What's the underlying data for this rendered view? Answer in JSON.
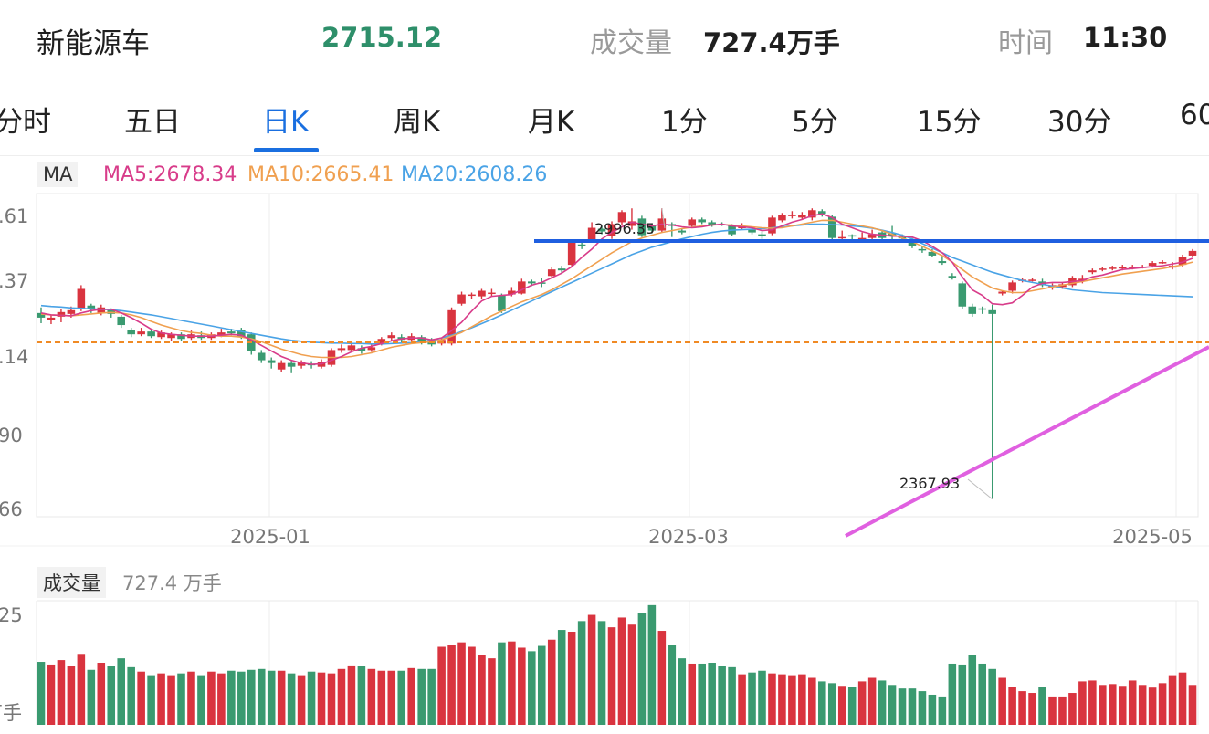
{
  "header": {
    "name": "新能源车",
    "price": "2715.12",
    "volume_label": "成交量",
    "volume_value": "727.4万手",
    "time_label": "时间",
    "time_value": "11:30"
  },
  "tabs": [
    "分时",
    "五日",
    "日K",
    "周K",
    "月K",
    "1分",
    "5分",
    "15分",
    "30分",
    "60"
  ],
  "active_tab": "日K",
  "ma_bar": {
    "chip": "MA",
    "ma5": "MA5:2678.34",
    "ma10": "MA10:2665.41",
    "ma20": "MA20:2608.26"
  },
  "volume_bar": {
    "chip": "成交量",
    "value": "727.4 万手"
  },
  "colors": {
    "up": "#d9343f",
    "down": "#3a9a70",
    "ma5": "#d83c8a",
    "ma10": "#f0a050",
    "ma20": "#4aa3e6",
    "accent": "#1a6fe0",
    "resistance": "#1f5fe0",
    "trendline": "#e060e0",
    "ref_line": "#f08a24"
  },
  "chart_data": {
    "type": "candlestick",
    "y_ticks": [
      ".61",
      ".37",
      ".14",
      "90",
      "66"
    ],
    "x_ticks": [
      "2025-01",
      "2025-03",
      "2025-05"
    ],
    "annotations": {
      "high": "2996.35",
      "low": "2367.93"
    },
    "volume_tick_top": "25",
    "volume_tick_bottom": "万手",
    "candles": [
      [
        2770,
        2760,
        2782,
        2748
      ],
      [
        2755,
        2760,
        2766,
        2746
      ],
      [
        2762,
        2772,
        2778,
        2750
      ],
      [
        2768,
        2776,
        2784,
        2760
      ],
      [
        2778,
        2822,
        2830,
        2774
      ],
      [
        2786,
        2778,
        2790,
        2770
      ],
      [
        2770,
        2782,
        2788,
        2765
      ],
      [
        2776,
        2768,
        2780,
        2760
      ],
      [
        2762,
        2744,
        2766,
        2738
      ],
      [
        2734,
        2724,
        2738,
        2718
      ],
      [
        2724,
        2730,
        2738,
        2720
      ],
      [
        2730,
        2720,
        2734,
        2716
      ],
      [
        2718,
        2728,
        2732,
        2714
      ],
      [
        2716,
        2724,
        2728,
        2710
      ],
      [
        2724,
        2714,
        2728,
        2710
      ],
      [
        2716,
        2724,
        2732,
        2712
      ],
      [
        2722,
        2716,
        2730,
        2712
      ],
      [
        2716,
        2724,
        2728,
        2712
      ],
      [
        2722,
        2728,
        2736,
        2718
      ],
      [
        2730,
        2726,
        2736,
        2722
      ],
      [
        2734,
        2718,
        2738,
        2714
      ],
      [
        2724,
        2688,
        2728,
        2680
      ],
      [
        2684,
        2668,
        2690,
        2662
      ],
      [
        2668,
        2662,
        2674,
        2650
      ],
      [
        2648,
        2662,
        2668,
        2642
      ],
      [
        2662,
        2654,
        2668,
        2640
      ],
      [
        2656,
        2664,
        2668,
        2650
      ],
      [
        2660,
        2658,
        2666,
        2650
      ],
      [
        2654,
        2664,
        2670,
        2650
      ],
      [
        2658,
        2690,
        2694,
        2654
      ],
      [
        2690,
        2694,
        2702,
        2684
      ],
      [
        2690,
        2700,
        2704,
        2686
      ],
      [
        2694,
        2688,
        2700,
        2682
      ],
      [
        2690,
        2696,
        2702,
        2686
      ],
      [
        2704,
        2714,
        2718,
        2700
      ],
      [
        2716,
        2722,
        2728,
        2710
      ],
      [
        2718,
        2712,
        2724,
        2706
      ],
      [
        2712,
        2720,
        2726,
        2706
      ],
      [
        2718,
        2708,
        2722,
        2702
      ],
      [
        2712,
        2702,
        2716,
        2698
      ],
      [
        2704,
        2712,
        2716,
        2700
      ],
      [
        2704,
        2776,
        2782,
        2700
      ],
      [
        2790,
        2810,
        2816,
        2786
      ],
      [
        2808,
        2810,
        2814,
        2800
      ],
      [
        2806,
        2818,
        2822,
        2800
      ],
      [
        2812,
        2814,
        2822,
        2806
      ],
      [
        2808,
        2774,
        2812,
        2770
      ],
      [
        2810,
        2818,
        2826,
        2806
      ],
      [
        2812,
        2838,
        2844,
        2810
      ],
      [
        2838,
        2834,
        2842,
        2828
      ],
      [
        2836,
        2834,
        2846,
        2826
      ],
      [
        2850,
        2864,
        2870,
        2846
      ],
      [
        2866,
        2862,
        2872,
        2856
      ],
      [
        2874,
        2922,
        2928,
        2870
      ],
      [
        2918,
        2914,
        2926,
        2908
      ],
      [
        2928,
        2954,
        2966,
        2922
      ],
      [
        2952,
        2946,
        2958,
        2940
      ],
      [
        2936,
        2962,
        2968,
        2930
      ],
      [
        2966,
        2988,
        2992,
        2960
      ],
      [
        2958,
        2968,
        2996,
        2950
      ],
      [
        2974,
        2938,
        2980,
        2934
      ],
      [
        2960,
        2948,
        2964,
        2942
      ],
      [
        2948,
        2974,
        2996,
        2944
      ],
      [
        2962,
        2958,
        2966,
        2934
      ],
      [
        2948,
        2944,
        2952,
        2940
      ],
      [
        2958,
        2972,
        2976,
        2954
      ],
      [
        2972,
        2966,
        2976,
        2962
      ],
      [
        2966,
        2960,
        2970,
        2956
      ],
      [
        2962,
        2960,
        2966,
        2958
      ],
      [
        2958,
        2940,
        2962,
        2936
      ],
      [
        2954,
        2956,
        2964,
        2950
      ],
      [
        2950,
        2944,
        2956,
        2940
      ],
      [
        2940,
        2936,
        2946,
        2930
      ],
      [
        2942,
        2976,
        2980,
        2938
      ],
      [
        2970,
        2982,
        2986,
        2966
      ],
      [
        2980,
        2982,
        2990,
        2974
      ],
      [
        2976,
        2982,
        2988,
        2972
      ],
      [
        2976,
        2992,
        2996,
        2970
      ],
      [
        2990,
        2984,
        2994,
        2978
      ],
      [
        2978,
        2932,
        2982,
        2926
      ],
      [
        2934,
        2934,
        2948,
        2928
      ],
      [
        2938,
        2936,
        2940,
        2928
      ],
      [
        2932,
        2932,
        2944,
        2926
      ],
      [
        2932,
        2940,
        2950,
        2928
      ],
      [
        2944,
        2932,
        2948,
        2928
      ],
      [
        2942,
        2936,
        2958,
        2928
      ],
      [
        2934,
        2932,
        2940,
        2926
      ],
      [
        2928,
        2914,
        2932,
        2910
      ],
      [
        2908,
        2906,
        2914,
        2900
      ],
      [
        2902,
        2894,
        2908,
        2890
      ],
      [
        2882,
        2878,
        2894,
        2874
      ],
      [
        2850,
        2846,
        2856,
        2842
      ],
      [
        2834,
        2784,
        2838,
        2778
      ],
      [
        2784,
        2768,
        2790,
        2762
      ],
      [
        2780,
        2778,
        2784,
        2768
      ],
      [
        2776,
        2768,
        2788,
        2368
      ],
      [
        2812,
        2816,
        2818,
        2808
      ],
      [
        2818,
        2836,
        2840,
        2812
      ],
      [
        2840,
        2842,
        2846,
        2836
      ],
      [
        2842,
        2842,
        2846,
        2838
      ],
      [
        2838,
        2830,
        2844,
        2826
      ],
      [
        2826,
        2830,
        2834,
        2820
      ],
      [
        2826,
        2832,
        2836,
        2822
      ],
      [
        2830,
        2846,
        2850,
        2826
      ],
      [
        2840,
        2844,
        2852,
        2834
      ],
      [
        2858,
        2862,
        2866,
        2854
      ],
      [
        2864,
        2866,
        2870,
        2860
      ],
      [
        2866,
        2868,
        2872,
        2862
      ],
      [
        2866,
        2870,
        2874,
        2862
      ],
      [
        2868,
        2870,
        2874,
        2864
      ],
      [
        2870,
        2870,
        2874,
        2866
      ],
      [
        2872,
        2878,
        2882,
        2868
      ],
      [
        2880,
        2880,
        2884,
        2876
      ],
      [
        2868,
        2872,
        2880,
        2864
      ],
      [
        2874,
        2890,
        2896,
        2870
      ],
      [
        2894,
        2904,
        2908,
        2890
      ]
    ],
    "ma5": [
      2770,
      2766,
      2765,
      2764,
      2770,
      2775,
      2778,
      2778,
      2770,
      2760,
      2748,
      2735,
      2727,
      2724,
      2722,
      2720,
      2720,
      2720,
      2722,
      2724,
      2722,
      2712,
      2700,
      2688,
      2676,
      2668,
      2662,
      2659,
      2660,
      2668,
      2676,
      2686,
      2694,
      2698,
      2704,
      2710,
      2714,
      2716,
      2716,
      2712,
      2716,
      2732,
      2750,
      2774,
      2796,
      2806,
      2808,
      2810,
      2820,
      2830,
      2836,
      2846,
      2856,
      2870,
      2890,
      2908,
      2930,
      2944,
      2956,
      2966,
      2962,
      2958,
      2962,
      2960,
      2956,
      2954,
      2956,
      2960,
      2962,
      2958,
      2956,
      2954,
      2948,
      2950,
      2958,
      2966,
      2972,
      2980,
      2984,
      2976,
      2962,
      2954,
      2946,
      2940,
      2938,
      2936,
      2936,
      2934,
      2926,
      2914,
      2900,
      2880,
      2848,
      2820,
      2808,
      2790,
      2788,
      2792,
      2808,
      2826,
      2834,
      2836,
      2836,
      2838,
      2840,
      2848,
      2852,
      2858,
      2864,
      2866,
      2868,
      2870,
      2872,
      2876,
      2880,
      2888
    ],
    "ma10": [
      2768,
      2766,
      2765,
      2764,
      2766,
      2768,
      2770,
      2771,
      2770,
      2766,
      2760,
      2752,
      2744,
      2738,
      2732,
      2728,
      2726,
      2722,
      2720,
      2720,
      2718,
      2714,
      2708,
      2700,
      2692,
      2686,
      2680,
      2676,
      2674,
      2674,
      2674,
      2676,
      2680,
      2684,
      2690,
      2696,
      2700,
      2704,
      2706,
      2708,
      2712,
      2720,
      2728,
      2740,
      2752,
      2764,
      2774,
      2784,
      2794,
      2802,
      2810,
      2820,
      2832,
      2844,
      2858,
      2872,
      2886,
      2900,
      2912,
      2924,
      2932,
      2938,
      2944,
      2948,
      2952,
      2955,
      2958,
      2960,
      2961,
      2960,
      2958,
      2956,
      2954,
      2953,
      2954,
      2958,
      2962,
      2966,
      2970,
      2970,
      2966,
      2962,
      2958,
      2954,
      2948,
      2940,
      2932,
      2924,
      2914,
      2904,
      2894,
      2880,
      2864,
      2848,
      2836,
      2824,
      2818,
      2814,
      2814,
      2818,
      2822,
      2826,
      2830,
      2834,
      2838,
      2842,
      2846,
      2850,
      2854,
      2857,
      2860,
      2863,
      2866,
      2870,
      2874,
      2880
    ],
    "ma20": [
      2786,
      2784,
      2783,
      2781,
      2780,
      2779,
      2778,
      2777,
      2775,
      2772,
      2769,
      2766,
      2762,
      2758,
      2754,
      2750,
      2746,
      2742,
      2738,
      2734,
      2730,
      2726,
      2722,
      2718,
      2714,
      2711,
      2709,
      2707,
      2706,
      2705,
      2705,
      2704,
      2704,
      2703,
      2703,
      2704,
      2705,
      2706,
      2708,
      2711,
      2716,
      2722,
      2730,
      2738,
      2747,
      2756,
      2766,
      2776,
      2786,
      2796,
      2806,
      2816,
      2826,
      2836,
      2846,
      2856,
      2866,
      2876,
      2886,
      2896,
      2904,
      2912,
      2918,
      2924,
      2930,
      2935,
      2940,
      2944,
      2947,
      2949,
      2950,
      2951,
      2952,
      2954,
      2956,
      2958,
      2960,
      2962,
      2962,
      2961,
      2960,
      2958,
      2956,
      2953,
      2949,
      2944,
      2938,
      2930,
      2920,
      2910,
      2900,
      2890,
      2882,
      2874,
      2866,
      2858,
      2852,
      2846,
      2840,
      2836,
      2832,
      2828,
      2824,
      2820,
      2818,
      2816,
      2814,
      2813,
      2812,
      2811,
      2810,
      2809,
      2808,
      2807,
      2806,
      2805
    ],
    "volumes": [
      71,
      68,
      73,
      66,
      80,
      62,
      70,
      66,
      75,
      65,
      60,
      56,
      58,
      56,
      58,
      60,
      56,
      60,
      58,
      61,
      60,
      62,
      63,
      61,
      61,
      58,
      56,
      60,
      59,
      58,
      63,
      67,
      66,
      63,
      61,
      61,
      61,
      64,
      63,
      63,
      88,
      90,
      93,
      88,
      79,
      75,
      93,
      94,
      87,
      83,
      89,
      96,
      107,
      105,
      117,
      124,
      117,
      110,
      121,
      113,
      126,
      135,
      106,
      90,
      75,
      69,
      69,
      70,
      66,
      65,
      57,
      59,
      61,
      58,
      57,
      56,
      57,
      53,
      49,
      47,
      44,
      43,
      49,
      53,
      50,
      45,
      41,
      41,
      38,
      34,
      32,
      69,
      68,
      79,
      69,
      63,
      53,
      43,
      38,
      36,
      43,
      32,
      32,
      36,
      49,
      50,
      45,
      46,
      44,
      50,
      45,
      42,
      47,
      56,
      59,
      45
    ]
  }
}
